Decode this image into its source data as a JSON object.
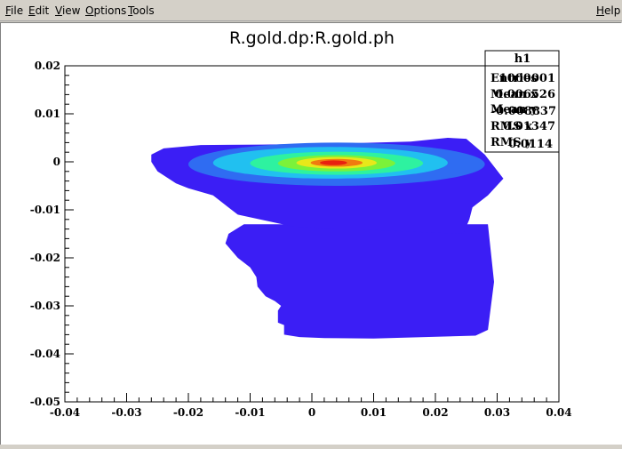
{
  "menubar": {
    "items": [
      {
        "label": "File",
        "mnemonic": "F",
        "rest": "ile"
      },
      {
        "label": "Edit",
        "mnemonic": "E",
        "rest": "dit"
      },
      {
        "label": "View",
        "mnemonic": "V",
        "rest": "iew"
      },
      {
        "label": "Options",
        "mnemonic": "O",
        "rest": "ptions"
      },
      {
        "label": "Tools",
        "mnemonic": "T",
        "rest": "ools"
      }
    ],
    "help": {
      "label": "Help",
      "mnemonic": "H",
      "rest": "elp"
    }
  },
  "chart_data": {
    "type": "heatmap",
    "title": "R.gold.dp:R.gold.ph",
    "xlabel": "",
    "ylabel": "",
    "xlim": [
      -0.04,
      0.04
    ],
    "ylim": [
      -0.05,
      0.02
    ],
    "x_ticks": [
      -0.04,
      -0.03,
      -0.02,
      -0.01,
      0,
      0.01,
      0.02,
      0.03,
      0.04
    ],
    "x_tick_labels": [
      "-0.04",
      "-0.03",
      "-0.02",
      "-0.01",
      "0",
      "0.01",
      "0.02",
      "0.03",
      "0.04"
    ],
    "y_ticks": [
      -0.05,
      -0.04,
      -0.03,
      -0.02,
      -0.01,
      0,
      0.01,
      0.02
    ],
    "y_tick_labels": [
      "-0.05",
      "-0.04",
      "-0.03",
      "-0.02",
      "-0.01",
      "0",
      "0.01",
      "0.02"
    ],
    "colors": {
      "level1": "#3b1ef5",
      "level2": "#2f6cf2",
      "level3": "#21c0f0",
      "level4": "#2ef2a0",
      "level5": "#7bf23a",
      "level6": "#e8e81a",
      "level7": "#f07a10",
      "level8": "#e82010"
    },
    "regions": {
      "outer_upper": [
        [
          -0.026,
          0.0015
        ],
        [
          -0.024,
          0.0028
        ],
        [
          -0.018,
          0.0035
        ],
        [
          -0.008,
          0.0036
        ],
        [
          0.004,
          0.0038
        ],
        [
          0.016,
          0.0042
        ],
        [
          0.022,
          0.005
        ],
        [
          0.025,
          0.0048
        ],
        [
          0.028,
          0.0015
        ],
        [
          0.031,
          -0.0035
        ],
        [
          0.0285,
          -0.007
        ],
        [
          0.026,
          -0.0095
        ],
        [
          0.0255,
          -0.012
        ],
        [
          0.0245,
          -0.015
        ],
        [
          -0.003,
          -0.0135
        ],
        [
          -0.012,
          -0.011
        ],
        [
          -0.016,
          -0.007
        ],
        [
          -0.02,
          -0.0055
        ],
        [
          -0.022,
          -0.0045
        ],
        [
          -0.025,
          -0.002
        ],
        [
          -0.026,
          0.0
        ]
      ],
      "outer_lower": [
        [
          -0.011,
          -0.013
        ],
        [
          0.0285,
          -0.013
        ],
        [
          0.0295,
          -0.025
        ],
        [
          0.0285,
          -0.035
        ],
        [
          0.0265,
          -0.0362
        ],
        [
          0.01,
          -0.0368
        ],
        [
          0.002,
          -0.0367
        ],
        [
          -0.002,
          -0.0365
        ],
        [
          -0.0045,
          -0.036
        ],
        [
          -0.0045,
          -0.034
        ],
        [
          -0.0055,
          -0.0335
        ],
        [
          -0.0055,
          -0.031
        ],
        [
          -0.005,
          -0.03
        ],
        [
          -0.006,
          -0.029
        ],
        [
          -0.0075,
          -0.028
        ],
        [
          -0.0088,
          -0.026
        ],
        [
          -0.009,
          -0.024
        ],
        [
          -0.01,
          -0.022
        ],
        [
          -0.012,
          -0.02
        ],
        [
          -0.014,
          -0.017
        ],
        [
          -0.0135,
          -0.015
        ]
      ],
      "contours": [
        {
          "level": "level2",
          "cx": 0.004,
          "cy": -0.0005,
          "rx": 0.024,
          "ry": 0.0045
        },
        {
          "level": "level3",
          "cx": 0.003,
          "cy": -0.0002,
          "rx": 0.019,
          "ry": 0.0033
        },
        {
          "level": "level4",
          "cx": 0.004,
          "cy": -0.0003,
          "rx": 0.014,
          "ry": 0.0024
        },
        {
          "level": "level5",
          "cx": 0.004,
          "cy": -0.0003,
          "rx": 0.0095,
          "ry": 0.0017
        },
        {
          "level": "level6",
          "cx": 0.004,
          "cy": -0.0002,
          "rx": 0.0065,
          "ry": 0.0012
        },
        {
          "level": "level7",
          "cx": 0.004,
          "cy": -0.0002,
          "rx": 0.0042,
          "ry": 0.0008
        },
        {
          "level": "level8",
          "cx": 0.0035,
          "cy": -0.0002,
          "rx": 0.0022,
          "ry": 0.0005
        }
      ]
    },
    "stats": {
      "name": "h1",
      "entries_label": "Entries",
      "entries": "1000001",
      "meanx_label": "Mean x",
      "meanx": "0.006526",
      "meany_label": "Mean y",
      "meany": "-0.008837",
      "rmsx_label": "RMS x",
      "rmsx": "0.01347",
      "rmsy_label": "RMS y",
      "rmsy": "0.0114"
    }
  }
}
